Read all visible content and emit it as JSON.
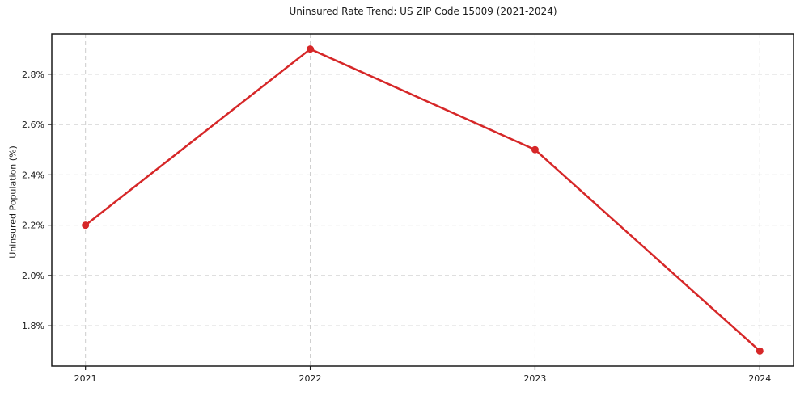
{
  "chart_data": {
    "type": "line",
    "title": "Uninsured Rate Trend: US ZIP Code 15009 (2021-2024)",
    "xlabel": "",
    "ylabel": "Uninsured Population (%)",
    "x": [
      2021,
      2022,
      2023,
      2024
    ],
    "values": [
      2.2,
      2.9,
      2.5,
      1.7
    ],
    "x_ticks": [
      2021,
      2022,
      2023,
      2024
    ],
    "x_tick_labels": [
      "2021",
      "2022",
      "2023",
      "2024"
    ],
    "y_ticks": [
      1.8,
      2.0,
      2.2,
      2.4,
      2.6,
      2.8
    ],
    "y_tick_labels": [
      "1.8%",
      "2.0%",
      "2.2%",
      "2.4%",
      "2.6%",
      "2.8%"
    ],
    "xlim": [
      2020.85,
      2024.15
    ],
    "ylim": [
      1.64,
      2.96
    ],
    "grid": true,
    "grid_style": "dashed",
    "legend": "none",
    "line_color": "#d62728",
    "marker": "circle",
    "marker_radius": 4.5
  }
}
